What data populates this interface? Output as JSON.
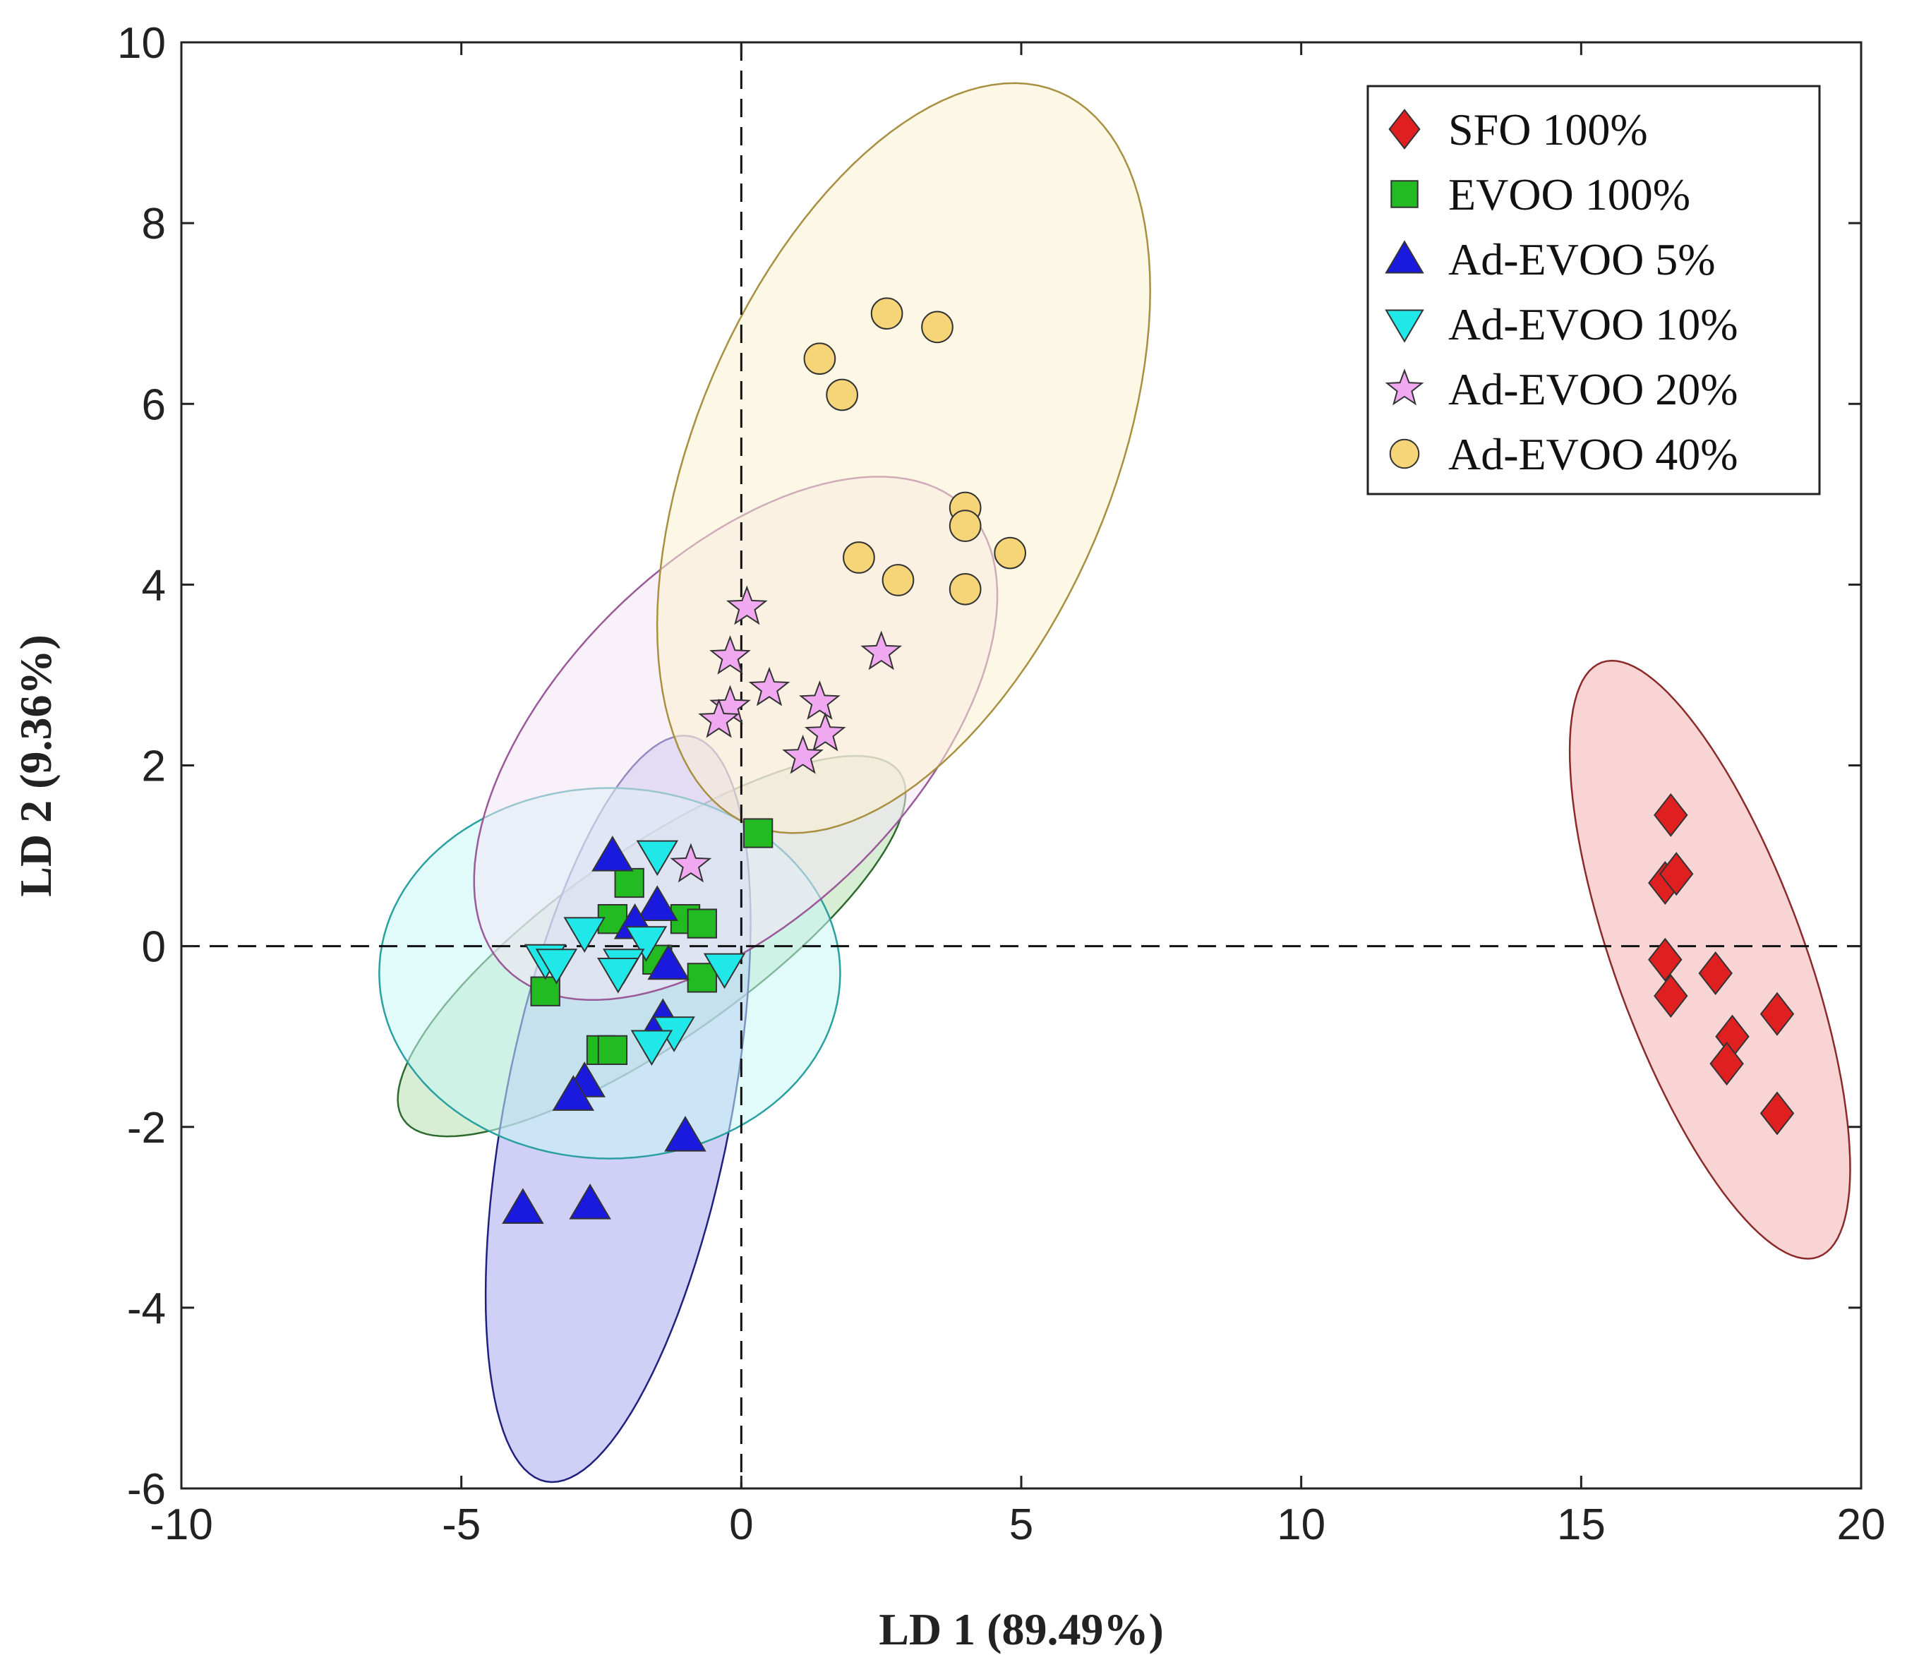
{
  "chart_data": {
    "type": "scatter",
    "title": "",
    "xlabel": "LD 1 (89.49%)",
    "ylabel": "LD 2 (9.36%)",
    "xlim": [
      -10,
      20
    ],
    "ylim": [
      -6,
      10
    ],
    "xticks": [
      -10,
      -5,
      0,
      5,
      10,
      15,
      20
    ],
    "yticks": [
      -6,
      -4,
      -2,
      0,
      2,
      4,
      6,
      8,
      10
    ],
    "xtick_labels": [
      "-10",
      "-5",
      "0",
      "5",
      "10",
      "15",
      "20"
    ],
    "ytick_labels": [
      "-6",
      "-4",
      "-2",
      "0",
      "2",
      "4",
      "6",
      "8",
      "10"
    ],
    "grid": false,
    "reference_lines": {
      "x": 0,
      "y": 0,
      "style": "dashed"
    },
    "legend_position": "top-right",
    "series": [
      {
        "name": "SFO 100%",
        "marker": "diamond",
        "color": "#e02020",
        "ellipse": {
          "cx": 17.3,
          "cy": -0.15,
          "rx": 3.5,
          "ry": 1.05,
          "angle": -70,
          "fill": "#f4b0b0",
          "stroke": "#8a2a2a"
        },
        "points": [
          [
            16.6,
            1.45
          ],
          [
            16.5,
            0.7
          ],
          [
            16.7,
            0.8
          ],
          [
            16.5,
            -0.15
          ],
          [
            16.6,
            -0.55
          ],
          [
            17.4,
            -0.3
          ],
          [
            17.7,
            -1.0
          ],
          [
            17.6,
            -1.3
          ],
          [
            18.5,
            -0.75
          ],
          [
            18.5,
            -1.85
          ]
        ]
      },
      {
        "name": "EVOO 100%",
        "marker": "square",
        "color": "#22bb22",
        "ellipse": {
          "cx": -1.6,
          "cy": 0.0,
          "rx": 3.35,
          "ry": 1.05,
          "angle": 35,
          "fill": "#b8e0b0",
          "stroke": "#2e6a2e"
        },
        "points": [
          [
            0.3,
            1.25
          ],
          [
            -2.0,
            0.7
          ],
          [
            -2.3,
            0.3
          ],
          [
            -1.0,
            0.3
          ],
          [
            -0.7,
            0.25
          ],
          [
            -0.7,
            -0.35
          ],
          [
            -3.5,
            -0.5
          ],
          [
            -2.5,
            -1.15
          ],
          [
            -2.3,
            -1.15
          ],
          [
            -1.5,
            -0.15
          ]
        ]
      },
      {
        "name": "Ad-EVOO 5%",
        "marker": "triangle-up",
        "color": "#1a1adf",
        "ellipse": {
          "cx": -2.2,
          "cy": -1.8,
          "rx": 4.2,
          "ry": 1.25,
          "angle": 79,
          "fill": "#aaaaee",
          "stroke": "#202080"
        },
        "points": [
          [
            -2.3,
            1.0
          ],
          [
            -1.5,
            0.45
          ],
          [
            -1.9,
            0.25
          ],
          [
            -1.3,
            -0.2
          ],
          [
            -1.4,
            -0.8
          ],
          [
            -2.8,
            -1.5
          ],
          [
            -3.0,
            -1.65
          ],
          [
            -1.0,
            -2.1
          ],
          [
            -3.9,
            -2.9
          ],
          [
            -2.7,
            -2.85
          ]
        ]
      },
      {
        "name": "Ad-EVOO 10%",
        "marker": "triangle-down",
        "color": "#20e8e8",
        "ellipse": {
          "cx": -2.35,
          "cy": -0.3,
          "rx": 2.55,
          "ry": 2.05,
          "angle": 0,
          "fill": "#c8f6f6",
          "stroke": "#2aa0a0"
        },
        "points": [
          [
            -1.5,
            1.0
          ],
          [
            -2.8,
            0.15
          ],
          [
            -1.7,
            0.05
          ],
          [
            -3.5,
            -0.15
          ],
          [
            -3.3,
            -0.2
          ],
          [
            -2.1,
            -0.2
          ],
          [
            -2.2,
            -0.3
          ],
          [
            -0.3,
            -0.25
          ],
          [
            -1.2,
            -0.95
          ],
          [
            -1.6,
            -1.1
          ]
        ]
      },
      {
        "name": "Ad-EVOO 20%",
        "marker": "star",
        "color": "#f0a8f0",
        "ellipse": {
          "cx": -0.1,
          "cy": 2.3,
          "rx": 3.6,
          "ry": 1.95,
          "angle": 45,
          "fill": "#f4e6f4",
          "stroke": "#9a5a9a"
        },
        "points": [
          [
            0.1,
            3.75
          ],
          [
            -0.2,
            3.2
          ],
          [
            2.5,
            3.25
          ],
          [
            0.5,
            2.85
          ],
          [
            -0.2,
            2.65
          ],
          [
            1.4,
            2.7
          ],
          [
            -0.4,
            2.5
          ],
          [
            1.5,
            2.35
          ],
          [
            1.1,
            2.1
          ],
          [
            -0.9,
            0.9
          ]
        ]
      },
      {
        "name": "Ad-EVOO 40%",
        "marker": "circle",
        "color": "#f6d478",
        "ellipse": {
          "cx": 2.9,
          "cy": 5.4,
          "rx": 4.4,
          "ry": 2.3,
          "angle": 67,
          "fill": "#fbf1d2",
          "stroke": "#a89040"
        },
        "points": [
          [
            2.6,
            7.0
          ],
          [
            3.5,
            6.85
          ],
          [
            1.4,
            6.5
          ],
          [
            1.8,
            6.1
          ],
          [
            4.0,
            4.85
          ],
          [
            4.0,
            4.65
          ],
          [
            4.8,
            4.35
          ],
          [
            2.1,
            4.3
          ],
          [
            2.8,
            4.05
          ],
          [
            4.0,
            3.95
          ]
        ]
      }
    ]
  }
}
